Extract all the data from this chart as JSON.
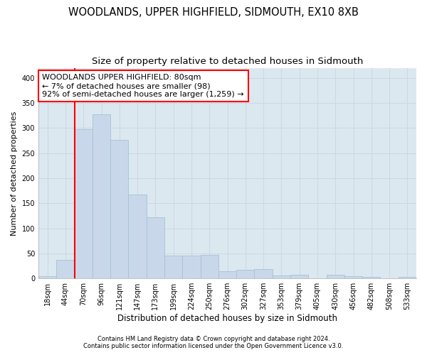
{
  "title": "WOODLANDS, UPPER HIGHFIELD, SIDMOUTH, EX10 8XB",
  "subtitle": "Size of property relative to detached houses in Sidmouth",
  "xlabel": "Distribution of detached houses by size in Sidmouth",
  "ylabel": "Number of detached properties",
  "footer_line1": "Contains HM Land Registry data © Crown copyright and database right 2024.",
  "footer_line2": "Contains public sector information licensed under the Open Government Licence v3.0.",
  "bin_labels": [
    "18sqm",
    "44sqm",
    "70sqm",
    "96sqm",
    "121sqm",
    "147sqm",
    "173sqm",
    "199sqm",
    "224sqm",
    "250sqm",
    "276sqm",
    "302sqm",
    "327sqm",
    "353sqm",
    "379sqm",
    "405sqm",
    "430sqm",
    "456sqm",
    "482sqm",
    "508sqm",
    "533sqm"
  ],
  "bar_heights": [
    4,
    37,
    297,
    328,
    277,
    168,
    122,
    45,
    46,
    47,
    15,
    17,
    18,
    6,
    7,
    0,
    7,
    4,
    3,
    0,
    3
  ],
  "bar_color": "#c8d8ea",
  "bar_edge_color": "#a8c0d4",
  "vline_color": "red",
  "annotation_line1": "WOODLANDS UPPER HIGHFIELD: 80sqm",
  "annotation_line2": "← 7% of detached houses are smaller (98)",
  "annotation_line3": "92% of semi-detached houses are larger (1,259) →",
  "annotation_box_edgecolor": "red",
  "annotation_box_facecolor": "white",
  "ylim": [
    0,
    420
  ],
  "yticks": [
    0,
    50,
    100,
    150,
    200,
    250,
    300,
    350,
    400
  ],
  "grid_color": "#ccd8e4",
  "background_color": "#dce8f0",
  "title_fontsize": 10.5,
  "subtitle_fontsize": 9.5,
  "annotation_fontsize": 8,
  "xlabel_fontsize": 8.5,
  "ylabel_fontsize": 8,
  "tick_fontsize": 7,
  "footer_fontsize": 6
}
